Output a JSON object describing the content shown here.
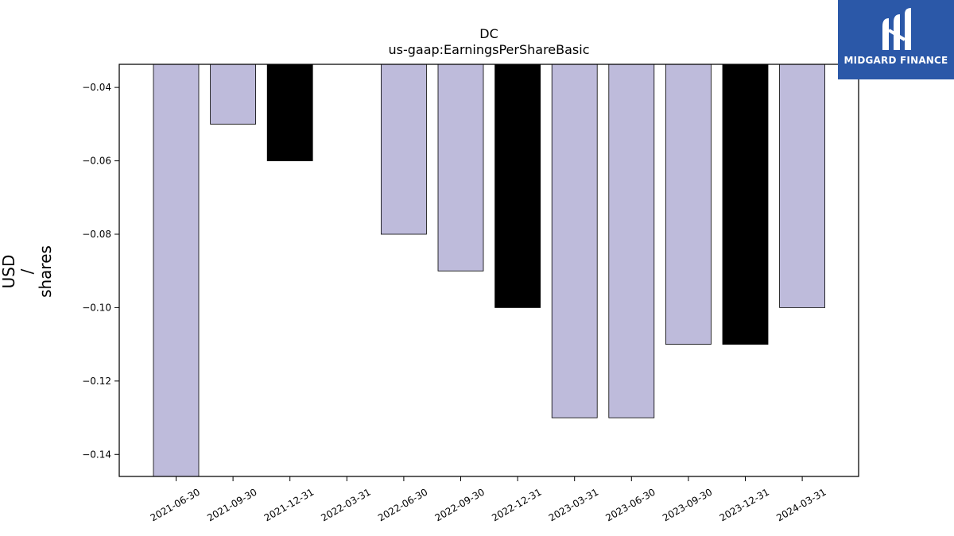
{
  "chart_data": {
    "type": "bar",
    "title": "DC",
    "subtitle": "us-gaap:EarningsPerShareBasic",
    "ylabel_lines": [
      "USD",
      "/",
      "shares"
    ],
    "categories": [
      "2021-06-30",
      "2021-09-30",
      "2021-12-31",
      "2022-03-31",
      "2022-06-30",
      "2022-09-30",
      "2022-12-31",
      "2023-03-31",
      "2023-06-30",
      "2023-09-30",
      "2023-12-31",
      "2024-03-31"
    ],
    "values": [
      -0.15,
      -0.05,
      -0.06,
      null,
      -0.08,
      -0.09,
      -0.1,
      -0.13,
      -0.13,
      -0.11,
      -0.11,
      -0.1
    ],
    "highlight": [
      false,
      false,
      true,
      false,
      false,
      false,
      true,
      false,
      false,
      false,
      true,
      false
    ],
    "yticks": [
      "−0.04",
      "−0.06",
      "−0.08",
      "−0.10",
      "−0.12",
      "−0.14"
    ],
    "ytick_values": [
      -0.04,
      -0.06,
      -0.08,
      -0.1,
      -0.12,
      -0.14
    ],
    "ylim": [
      -0.146,
      -0.0337
    ],
    "grid": false,
    "colors": {
      "bar": "#bebbdb",
      "highlight": "#000000",
      "edge": "#000000"
    }
  },
  "brand": {
    "name": "MIDGARD FINANCE",
    "color": "#2b58a8"
  }
}
